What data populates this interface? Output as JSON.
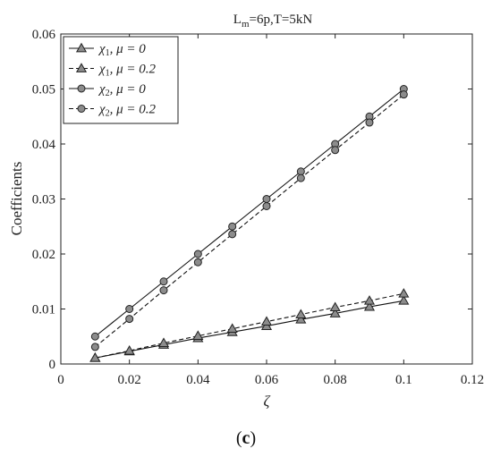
{
  "chart_data": {
    "type": "line",
    "title": "L_m=6p,T=5kN",
    "title_parts": {
      "main": "L",
      "subscript": "m",
      "rest": "=6p,T=5kN"
    },
    "xlabel": "ζ",
    "ylabel": "Coefficients",
    "xlim": [
      0,
      0.12
    ],
    "ylim": [
      0,
      0.06
    ],
    "x_ticks": [
      0,
      0.02,
      0.04,
      0.06,
      0.08,
      0.1,
      0.12
    ],
    "x_tick_labels": [
      "0",
      "0.02",
      "0.04",
      "0.06",
      "0.08",
      "0.1",
      "0.12"
    ],
    "y_ticks": [
      0,
      0.01,
      0.02,
      0.03,
      0.04,
      0.05,
      0.06
    ],
    "y_tick_labels": [
      "0",
      "0.01",
      "0.02",
      "0.03",
      "0.04",
      "0.05",
      "0.06"
    ],
    "grid": false,
    "legend_position": "top-left",
    "x": [
      0.01,
      0.02,
      0.03,
      0.04,
      0.05,
      0.06,
      0.07,
      0.08,
      0.09,
      0.1
    ],
    "series": [
      {
        "name": "χ1, μ = 0",
        "marker": "triangle",
        "line": "solid",
        "values": [
          0.0011,
          0.0023,
          0.0035,
          0.0047,
          0.0058,
          0.0069,
          0.0081,
          0.0092,
          0.0104,
          0.0115
        ]
      },
      {
        "name": "χ1, μ = 0.2",
        "marker": "triangle",
        "line": "dashed",
        "values": [
          0.0011,
          0.0024,
          0.0038,
          0.0051,
          0.0064,
          0.0077,
          0.009,
          0.0103,
          0.0115,
          0.0128
        ]
      },
      {
        "name": "χ2, μ = 0",
        "marker": "circle",
        "line": "solid",
        "values": [
          0.005,
          0.01,
          0.015,
          0.02,
          0.025,
          0.03,
          0.035,
          0.04,
          0.045,
          0.05
        ]
      },
      {
        "name": "χ2, μ = 0.2",
        "marker": "circle",
        "line": "dashed",
        "values": [
          0.0031,
          0.0082,
          0.0134,
          0.0185,
          0.0236,
          0.0287,
          0.0338,
          0.0389,
          0.0439,
          0.049
        ]
      }
    ],
    "colors": {
      "line": "#111111",
      "marker_fill": "#8c8c8c",
      "marker_edge": "#222222"
    }
  },
  "panel_label": "(c)"
}
